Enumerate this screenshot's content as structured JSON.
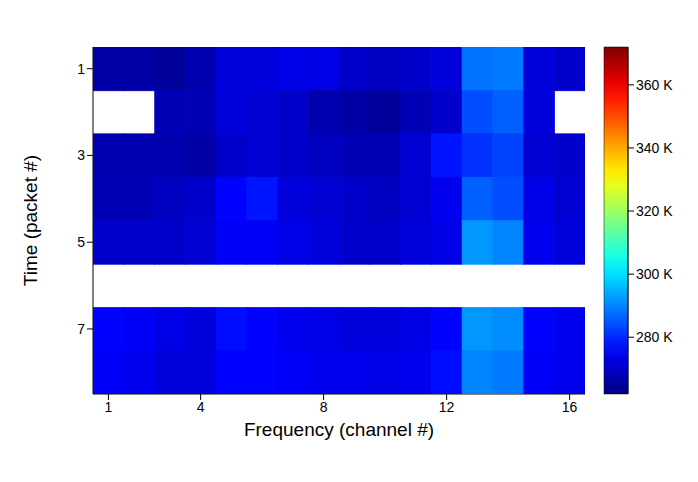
{
  "chart_data": {
    "type": "heatmap",
    "xlabel": "Frequency (channel #)",
    "ylabel": "Time (packet #)",
    "x": [
      1,
      2,
      3,
      4,
      5,
      6,
      7,
      8,
      9,
      10,
      11,
      12,
      13,
      14,
      15,
      16
    ],
    "y": [
      1,
      2,
      3,
      4,
      5,
      6,
      7,
      8
    ],
    "xlim": [
      0.5,
      16.5
    ],
    "ylim": [
      0.5,
      8.5
    ],
    "xticks": [
      1,
      4,
      8,
      12,
      16
    ],
    "yticks": [
      1,
      3,
      5,
      7
    ],
    "cells": [
      [
        266,
        266,
        265,
        267,
        272,
        272,
        273,
        273,
        270,
        269,
        270,
        272,
        288,
        289,
        272,
        270
      ],
      [
        null,
        null,
        268,
        268,
        272,
        271,
        270,
        267,
        266,
        265,
        268,
        270,
        284,
        286,
        272,
        null
      ],
      [
        267,
        267,
        267,
        266,
        270,
        271,
        270,
        269,
        268,
        268,
        271,
        278,
        281,
        283,
        271,
        270
      ],
      [
        268,
        268,
        269,
        270,
        276,
        278,
        272,
        271,
        270,
        269,
        271,
        274,
        286,
        284,
        273,
        271
      ],
      [
        270,
        270,
        270,
        271,
        275,
        275,
        273,
        272,
        270,
        270,
        272,
        273,
        292,
        290,
        274,
        272
      ],
      [
        null,
        null,
        null,
        null,
        null,
        null,
        null,
        null,
        null,
        null,
        null,
        null,
        null,
        null,
        null,
        null
      ],
      [
        276,
        275,
        273,
        272,
        277,
        276,
        274,
        273,
        272,
        272,
        273,
        276,
        292,
        291,
        276,
        274
      ],
      [
        275,
        274,
        272,
        272,
        276,
        276,
        275,
        274,
        274,
        273,
        274,
        277,
        290,
        289,
        275,
        274
      ]
    ],
    "colorbar": {
      "range": [
        262,
        372
      ],
      "ticks": [
        {
          "value": 280,
          "label": "280 K"
        },
        {
          "value": 300,
          "label": "300 K"
        },
        {
          "value": 320,
          "label": "320 K"
        },
        {
          "value": 340,
          "label": "340 K"
        },
        {
          "value": 360,
          "label": "360 K"
        }
      ]
    }
  }
}
